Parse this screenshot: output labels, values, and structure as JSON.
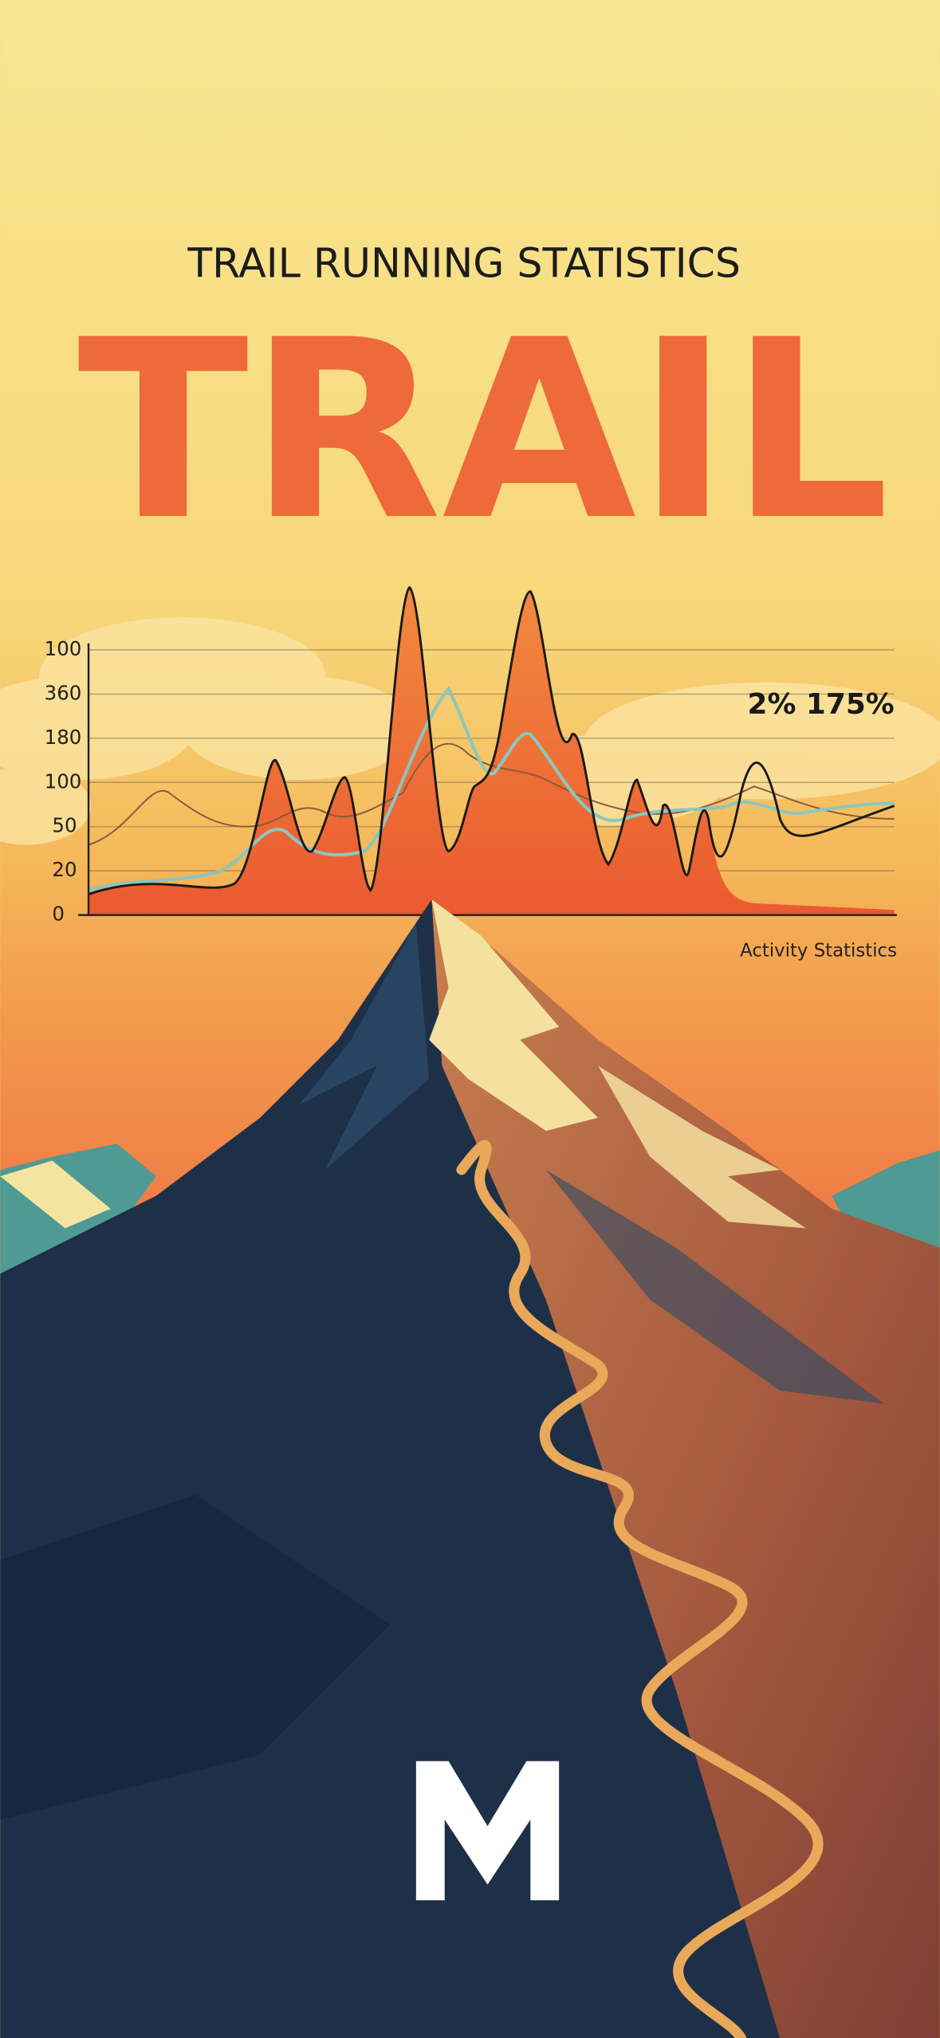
{
  "header": {
    "subtitle": "TRAIL RUNNING STATISTICS",
    "title": "TRAIL"
  },
  "chart": {
    "y_labels": [
      "100",
      "360",
      "180",
      "100",
      "50",
      "20",
      "0"
    ],
    "callout": "2% 175%",
    "caption": "Activity Statistics"
  }
}
